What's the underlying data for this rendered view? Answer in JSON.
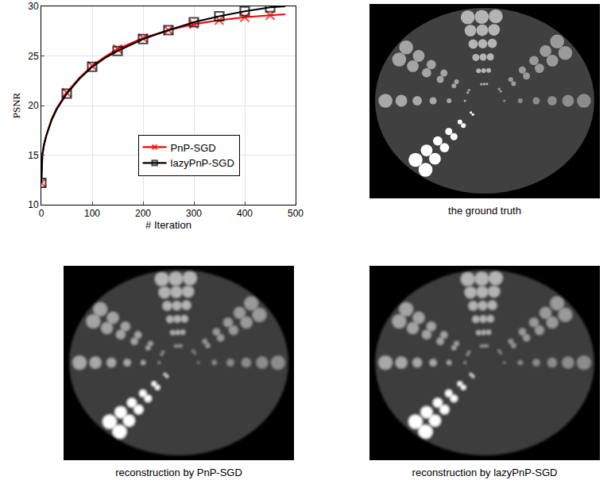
{
  "chart_data": {
    "type": "line",
    "x_label": "# Iteration",
    "y_label": "PSNR",
    "x": [
      0,
      2,
      5,
      10,
      20,
      30,
      50,
      75,
      100,
      125,
      150,
      200,
      250,
      300,
      350,
      400,
      450,
      480
    ],
    "series": [
      {
        "name": "PnP-SGD",
        "color": "#ff0000",
        "marker": "x",
        "line_style": "solid",
        "values": [
          12.2,
          15.0,
          16.0,
          17.0,
          18.6,
          19.7,
          21.3,
          22.8,
          24.0,
          24.9,
          25.7,
          26.8,
          27.6,
          28.2,
          28.6,
          28.9,
          29.1,
          29.2
        ]
      },
      {
        "name": "lazyPnP-SGD",
        "color": "#000000",
        "marker": "square",
        "line_style": "solid",
        "values": [
          12.2,
          15.0,
          16.0,
          17.0,
          18.5,
          19.6,
          21.2,
          22.7,
          23.9,
          24.8,
          25.5,
          26.7,
          27.6,
          28.4,
          29.0,
          29.5,
          29.9,
          30.0
        ]
      }
    ],
    "xlim": [
      0,
      500
    ],
    "xticks": [
      0,
      100,
      200,
      300,
      400,
      500
    ],
    "ylim": [
      10,
      30
    ],
    "yticks": [
      10,
      15,
      20,
      25,
      30
    ],
    "grid": true,
    "legend": "center"
  },
  "panels": [
    {
      "caption": "the ground truth"
    },
    {
      "caption": "reconstruction by PnP-SGD"
    },
    {
      "caption": "reconstruction by lazyPnP-SGD"
    }
  ]
}
